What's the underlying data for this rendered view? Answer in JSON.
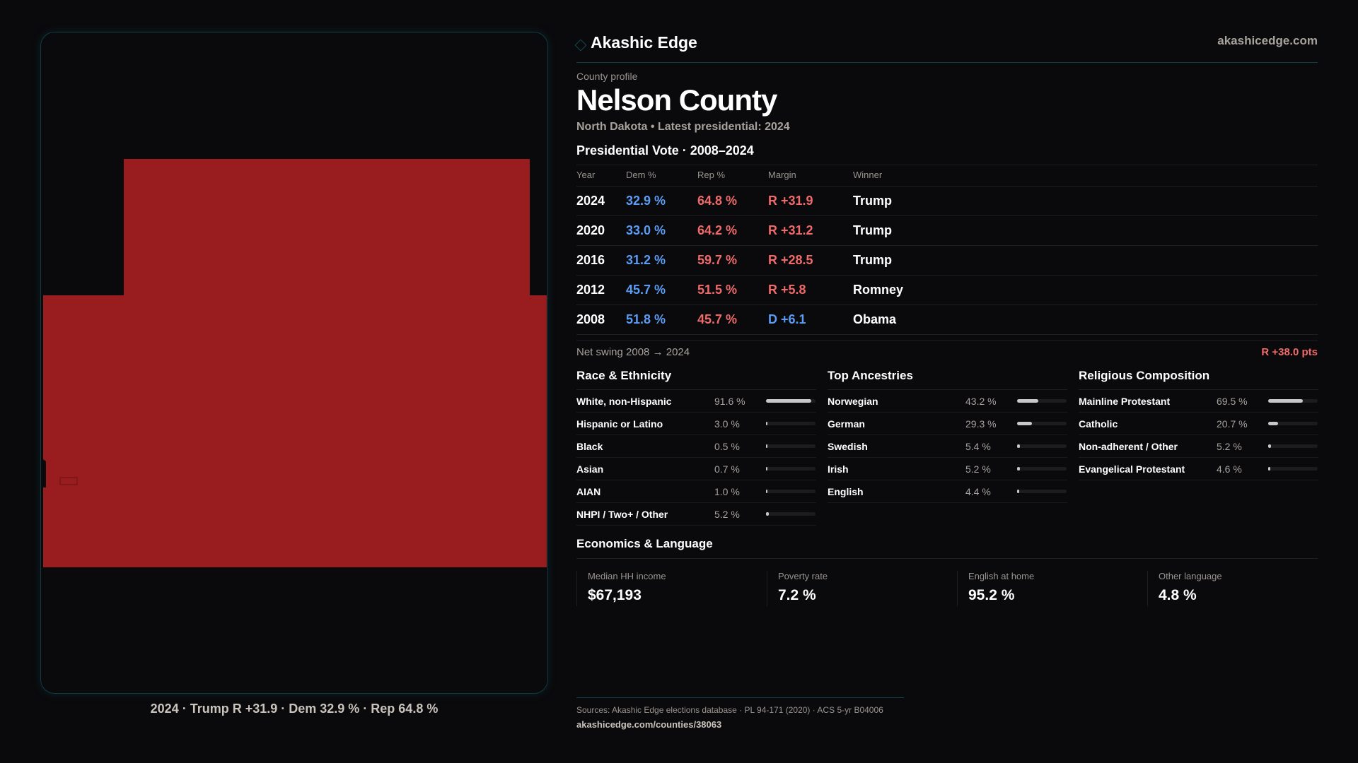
{
  "brand": {
    "name": "Akashic Edge",
    "site": "akashicedge.com"
  },
  "profile": {
    "eyebrow": "County profile",
    "title": "Nelson County",
    "subtitle": "North Dakota • Latest presidential: 2024"
  },
  "map": {
    "caption": "2024 · Trump R +31.9 · Dem 32.9 % · Rep 64.8 %",
    "fill_color": "#991c1e"
  },
  "presidential": {
    "title": "Presidential Vote · 2008–2024",
    "headers": [
      "Year",
      "Dem %",
      "Rep %",
      "Margin",
      "Winner"
    ],
    "rows": [
      {
        "year": "2024",
        "dem": "32.9 %",
        "rep": "64.8 %",
        "margin": "R +31.9",
        "party": "R",
        "winner": "Trump"
      },
      {
        "year": "2020",
        "dem": "33.0 %",
        "rep": "64.2 %",
        "margin": "R +31.2",
        "party": "R",
        "winner": "Trump"
      },
      {
        "year": "2016",
        "dem": "31.2 %",
        "rep": "59.7 %",
        "margin": "R +28.5",
        "party": "R",
        "winner": "Trump"
      },
      {
        "year": "2012",
        "dem": "45.7 %",
        "rep": "51.5 %",
        "margin": "R +5.8",
        "party": "R",
        "winner": "Romney"
      },
      {
        "year": "2008",
        "dem": "51.8 %",
        "rep": "45.7 %",
        "margin": "D +6.1",
        "party": "D",
        "winner": "Obama"
      }
    ]
  },
  "swing": {
    "label": "Net swing 2008 → 2024",
    "value": "R +38.0 pts"
  },
  "demographics": [
    {
      "title": "Race & Ethnicity",
      "rows": [
        {
          "label": "White, non-Hispanic",
          "value": "91.6 %",
          "pct": 91.6
        },
        {
          "label": "Hispanic or Latino",
          "value": "3.0 %",
          "pct": 3.0
        },
        {
          "label": "Black",
          "value": "0.5 %",
          "pct": 0.5
        },
        {
          "label": "Asian",
          "value": "0.7 %",
          "pct": 0.7
        },
        {
          "label": "AIAN",
          "value": "1.0 %",
          "pct": 1.0
        },
        {
          "label": "NHPI / Two+ / Other",
          "value": "5.2 %",
          "pct": 5.2
        }
      ]
    },
    {
      "title": "Top Ancestries",
      "rows": [
        {
          "label": "Norwegian",
          "value": "43.2 %",
          "pct": 43.2
        },
        {
          "label": "German",
          "value": "29.3 %",
          "pct": 29.3
        },
        {
          "label": "Swedish",
          "value": "5.4 %",
          "pct": 5.4
        },
        {
          "label": "Irish",
          "value": "5.2 %",
          "pct": 5.2
        },
        {
          "label": "English",
          "value": "4.4 %",
          "pct": 4.4
        }
      ]
    },
    {
      "title": "Religious Composition",
      "rows": [
        {
          "label": "Mainline Protestant",
          "value": "69.5 %",
          "pct": 69.5
        },
        {
          "label": "Catholic",
          "value": "20.7 %",
          "pct": 20.7
        },
        {
          "label": "Non-adherent / Other",
          "value": "5.2 %",
          "pct": 5.2
        },
        {
          "label": "Evangelical Protestant",
          "value": "4.6 %",
          "pct": 4.6
        }
      ]
    }
  ],
  "economics": {
    "title": "Economics & Language",
    "cards": [
      {
        "label": "Median HH income",
        "value": "$67,193"
      },
      {
        "label": "Poverty rate",
        "value": "7.2 %"
      },
      {
        "label": "English at home",
        "value": "95.2 %"
      },
      {
        "label": "Other language",
        "value": "4.8 %"
      }
    ]
  },
  "footer": {
    "sources": "Sources: Akashic Edge elections database · PL 94-171 (2020) · ACS 5-yr B04006",
    "url": "akashicedge.com/counties/38063"
  }
}
